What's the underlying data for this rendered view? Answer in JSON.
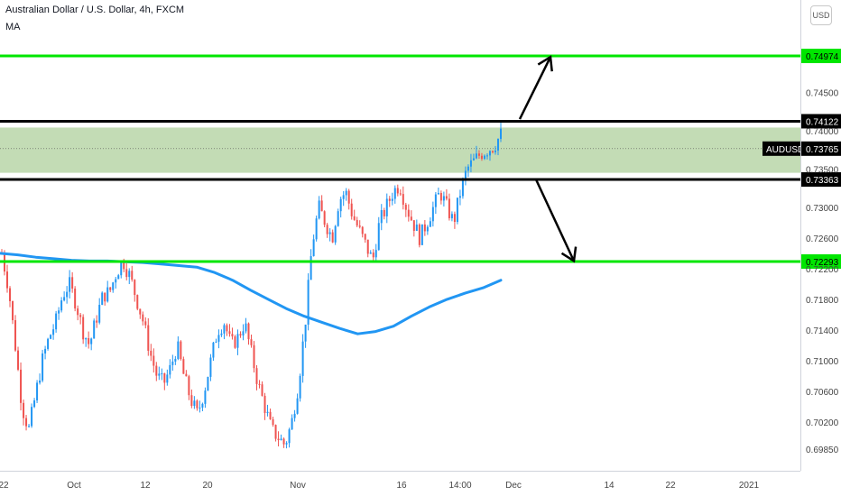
{
  "header": {
    "title": "Australian Dollar / U.S. Dollar, 4h, FXCM",
    "indicator": "MA"
  },
  "currency_button": "USD",
  "colors": {
    "bull": "#2196f3",
    "bear": "#ef5350",
    "ma": "#2196f3",
    "level_green": "#00e600",
    "level_black": "#000000",
    "zone_fill": "#c3dcb5"
  },
  "chart_data": {
    "type": "candlestick",
    "symbol": "AUDUSD",
    "interval": "4h",
    "ylim": [
      0.697,
      0.756
    ],
    "y_ticks": [
      "0.74500",
      "0.74000",
      "0.73500",
      "0.73000",
      "0.72600",
      "0.72200",
      "0.71800",
      "0.71400",
      "0.71000",
      "0.70600",
      "0.70200",
      "0.69850"
    ],
    "x_ticks": [
      "22",
      "Oct",
      "12",
      "20",
      "Nov",
      "16",
      "14:00",
      "Dec",
      "14",
      "22",
      "2021"
    ],
    "last_price": {
      "label": "AUDUSD",
      "value": "0.73765",
      "price": 0.73765
    },
    "levels": [
      {
        "price": 0.74974,
        "label": "0.74974",
        "color": "green"
      },
      {
        "price": 0.74122,
        "label": "0.74122",
        "color": "black"
      },
      {
        "price": 0.73363,
        "label": "0.73363",
        "color": "black"
      },
      {
        "price": 0.72293,
        "label": "0.72293",
        "color": "green"
      }
    ],
    "zone": [
      0.7345,
      0.7404
    ],
    "price_path": [
      0.724,
      0.7195,
      0.712,
      0.704,
      0.701,
      0.7055,
      0.71,
      0.713,
      0.715,
      0.7185,
      0.72,
      0.7175,
      0.714,
      0.712,
      0.7155,
      0.7185,
      0.719,
      0.7215,
      0.723,
      0.721,
      0.718,
      0.715,
      0.711,
      0.708,
      0.707,
      0.709,
      0.712,
      0.708,
      0.705,
      0.703,
      0.706,
      0.71,
      0.714,
      0.715,
      0.712,
      0.713,
      0.715,
      0.711,
      0.707,
      0.704,
      0.701,
      0.7,
      0.699,
      0.702,
      0.707,
      0.715,
      0.725,
      0.73,
      0.728,
      0.726,
      0.731,
      0.732,
      0.729,
      0.727,
      0.725,
      0.723,
      0.728,
      0.73,
      0.732,
      0.733,
      0.73,
      0.728,
      0.726,
      0.728,
      0.73,
      0.732,
      0.73,
      0.728,
      0.732,
      0.735,
      0.736,
      0.737,
      0.7375,
      0.738,
      0.7395
    ],
    "moving_average": [
      0.724,
      0.7238,
      0.7235,
      0.7233,
      0.7231,
      0.723,
      0.723,
      0.7229,
      0.7228,
      0.7226,
      0.7224,
      0.7222,
      0.7215,
      0.7205,
      0.7192,
      0.718,
      0.7168,
      0.7158,
      0.715,
      0.7142,
      0.7135,
      0.7138,
      0.7145,
      0.7158,
      0.717,
      0.718,
      0.7188,
      0.7195,
      0.7205
    ],
    "arrows": [
      {
        "from": [
          0.7415
        ],
        "to": [
          0.7496
        ],
        "direction": "up"
      },
      {
        "from": [
          0.73363
        ],
        "to": [
          0.723
        ],
        "direction": "down"
      }
    ]
  }
}
